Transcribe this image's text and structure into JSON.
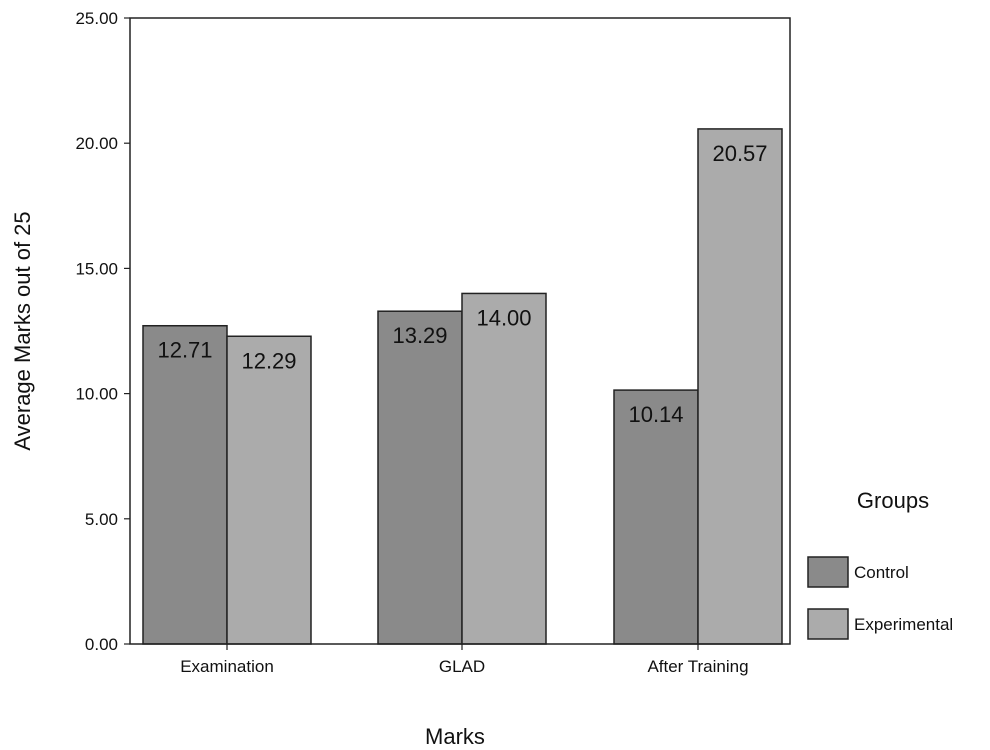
{
  "chart_data": {
    "type": "bar",
    "categories": [
      "Examination",
      "GLAD",
      "After Training"
    ],
    "series": [
      {
        "name": "Control",
        "values": [
          12.71,
          13.29,
          10.14
        ],
        "color": "#8a8a8a"
      },
      {
        "name": "Experimental",
        "values": [
          12.29,
          14.0,
          20.57
        ],
        "color": "#ababab"
      }
    ],
    "data_labels": [
      [
        "12.71",
        "13.29",
        "10.14"
      ],
      [
        "12.29",
        "14.00",
        "20.57"
      ]
    ],
    "title": "",
    "xlabel": "Marks",
    "ylabel": "Average Marks out of 25",
    "ylim": [
      0,
      25
    ],
    "yticks": [
      "0.00",
      "5.00",
      "10.00",
      "15.00",
      "20.00",
      "25.00"
    ],
    "ytick_values": [
      0,
      5,
      10,
      15,
      20,
      25
    ],
    "grid": false,
    "legend": {
      "title": "Groups",
      "placement": "right",
      "entries": [
        "Control",
        "Experimental"
      ]
    }
  }
}
